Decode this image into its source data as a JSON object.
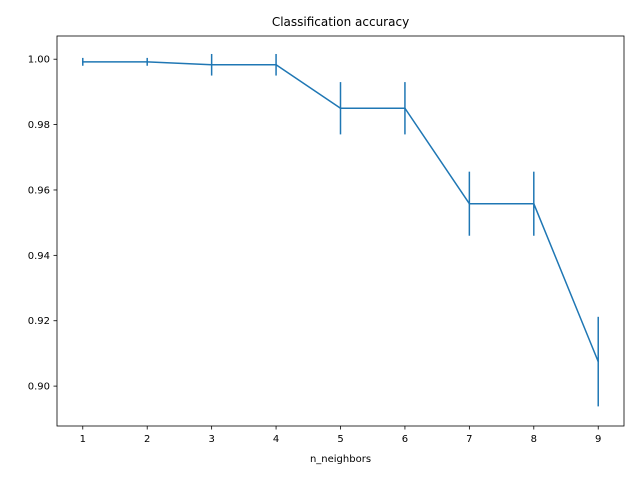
{
  "chart_data": {
    "type": "line",
    "title": "Classification accuracy",
    "xlabel": "n_neighbors",
    "ylabel": "",
    "x": [
      1,
      2,
      3,
      4,
      5,
      6,
      7,
      8,
      9
    ],
    "series": [
      {
        "values": [
          0.9992,
          0.9992,
          0.9983,
          0.9983,
          0.985,
          0.985,
          0.9558,
          0.9558,
          0.9075
        ],
        "errors": [
          0.0012,
          0.0012,
          0.0033,
          0.0033,
          0.008,
          0.008,
          0.0098,
          0.0098,
          0.0137
        ],
        "color": "#1f77b4"
      }
    ],
    "xlim": [
      0.6,
      9.4
    ],
    "ylim": [
      0.8878,
      1.0071
    ],
    "xticks": [
      1,
      2,
      3,
      4,
      5,
      6,
      7,
      8,
      9
    ],
    "xtick_labels": [
      "1",
      "2",
      "3",
      "4",
      "5",
      "6",
      "7",
      "8",
      "9"
    ],
    "yticks": [
      0.9,
      0.92,
      0.94,
      0.96,
      0.98,
      1.0
    ],
    "ytick_labels": [
      "0.90",
      "0.92",
      "0.94",
      "0.96",
      "0.98",
      "1.00"
    ],
    "grid": false,
    "legend": "none"
  }
}
